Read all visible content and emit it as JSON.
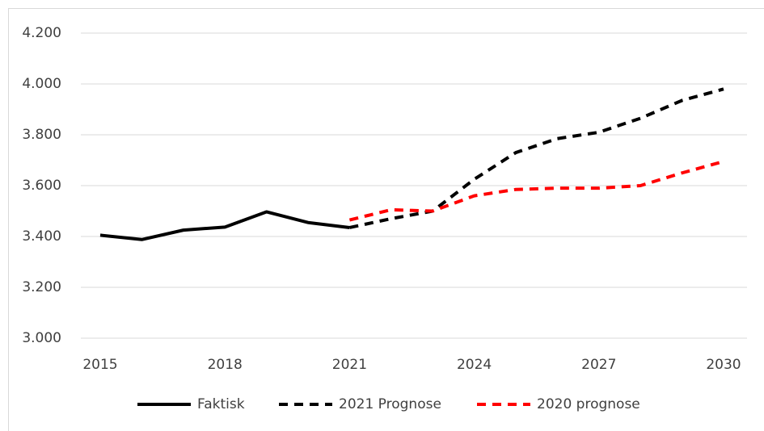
{
  "chart_data": {
    "type": "line",
    "x": [
      2015,
      2016,
      2017,
      2018,
      2019,
      2020,
      2021,
      2022,
      2023,
      2024,
      2025,
      2026,
      2027,
      2028,
      2029,
      2030
    ],
    "series": [
      {
        "name": "Faktisk",
        "color": "#000000",
        "dashed": false,
        "values": [
          3405,
          3388,
          3425,
          3437,
          3497,
          3455,
          3435,
          null,
          null,
          null,
          null,
          null,
          null,
          null,
          null,
          null
        ]
      },
      {
        "name": "2021 Prognose",
        "color": "#000000",
        "dashed": true,
        "values": [
          null,
          null,
          null,
          null,
          null,
          null,
          3435,
          3470,
          3500,
          3625,
          3730,
          3785,
          3810,
          3865,
          3935,
          3980
        ]
      },
      {
        "name": "2020 prognose",
        "color": "#ff0000",
        "dashed": true,
        "values": [
          null,
          null,
          null,
          null,
          null,
          null,
          3465,
          3505,
          3500,
          3560,
          3585,
          3590,
          3590,
          3600,
          3650,
          3695
        ]
      }
    ],
    "xlim": [
      2015,
      2030
    ],
    "xticks": [
      2015,
      2018,
      2021,
      2024,
      2027,
      2030
    ],
    "ylim": [
      3000,
      4200
    ],
    "yticks": [
      {
        "value": 3000,
        "label": "3.000"
      },
      {
        "value": 3200,
        "label": "3.200"
      },
      {
        "value": 3400,
        "label": "3.400"
      },
      {
        "value": 3600,
        "label": "3.600"
      },
      {
        "value": 3800,
        "label": "3.800"
      },
      {
        "value": 4000,
        "label": "4.000"
      },
      {
        "value": 4200,
        "label": "4.200"
      }
    ],
    "grid": true,
    "legend": "bottom"
  }
}
